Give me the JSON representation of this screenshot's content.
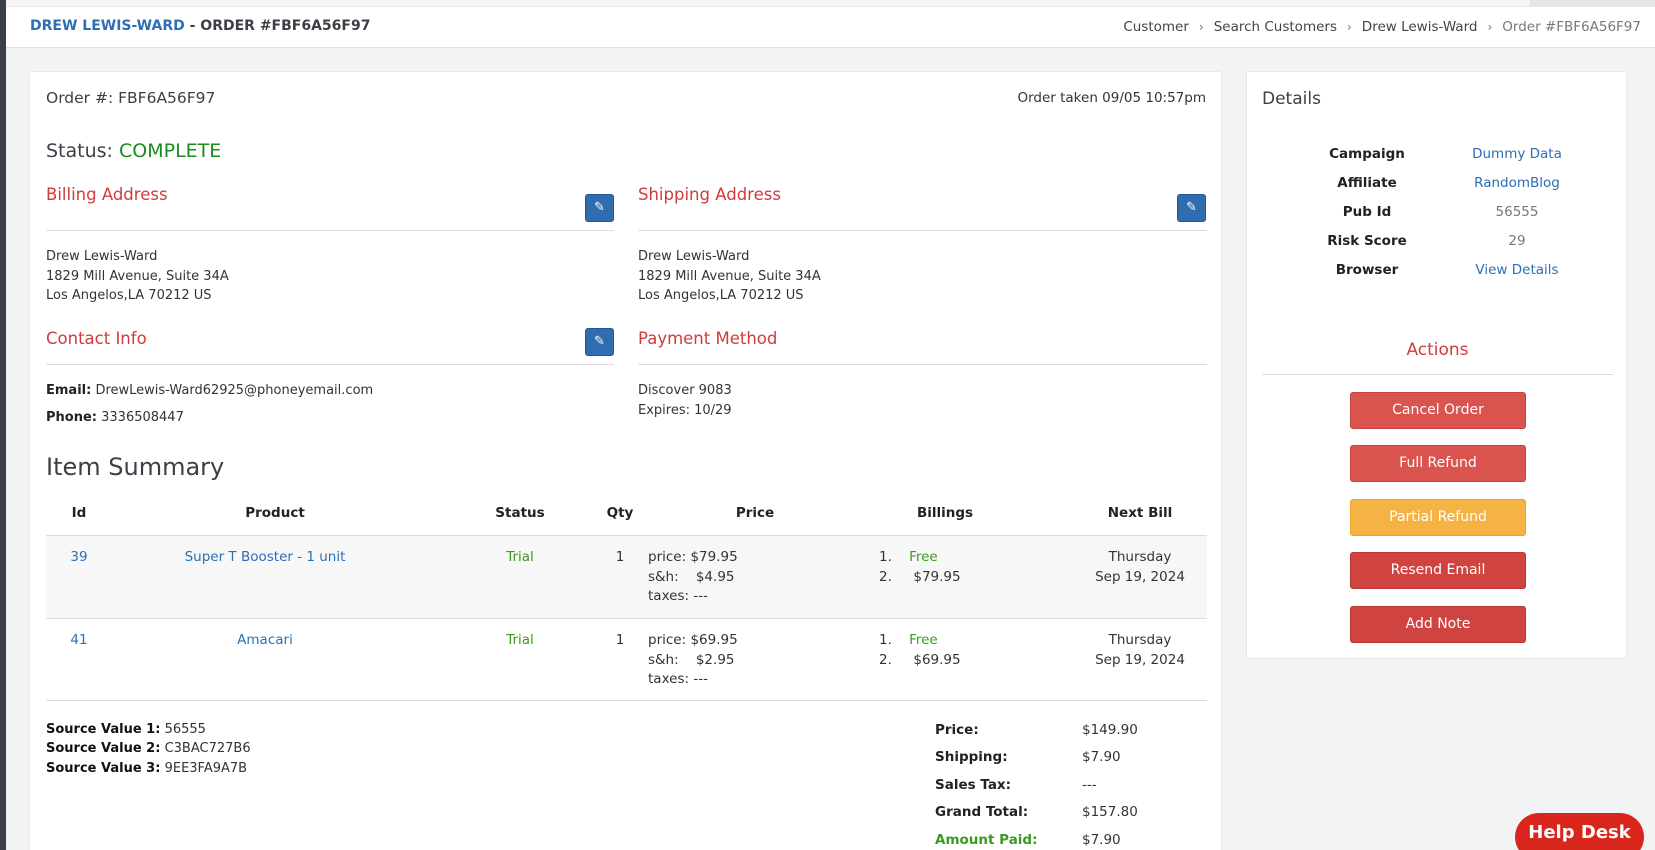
{
  "header": {
    "customer_name": "DREW LEWIS-WARD",
    "order_suffix": " - ORDER #FBF6A56F97",
    "breadcrumb": [
      "Customer",
      "Search Customers",
      "Drew Lewis-Ward",
      "Order #FBF6A56F97"
    ],
    "breadcrumb_separator": "›"
  },
  "order": {
    "number_label": "Order #: FBF6A56F97",
    "taken": "Order taken 09/05 10:57pm",
    "status_label": "Status: ",
    "status_value": "COMPLETE"
  },
  "billing": {
    "title": "Billing Address",
    "lines": [
      "Drew Lewis-Ward",
      "1829 Mill Avenue, Suite 34A",
      "Los Angelos,LA 70212 US"
    ]
  },
  "shipping": {
    "title": "Shipping Address",
    "lines": [
      "Drew Lewis-Ward",
      "1829 Mill Avenue, Suite 34A",
      "Los Angelos,LA 70212 US"
    ]
  },
  "contact": {
    "title": "Contact Info",
    "email_label": "Email:",
    "email": "DrewLewis-Ward62925@phoneyemail.com",
    "phone_label": "Phone:",
    "phone": "3336508447"
  },
  "payment": {
    "title": "Payment Method",
    "card": "Discover 9083",
    "expires": "Expires: 10/29"
  },
  "items": {
    "title": "Item Summary",
    "columns": [
      "Id",
      "Product",
      "Status",
      "Qty",
      "Price",
      "Billings",
      "Next Bill"
    ],
    "rows": [
      {
        "id": "39",
        "product": "Super T Booster - 1 unit",
        "status": "Trial",
        "qty": "1",
        "price_label": "price:",
        "price": "$79.95",
        "sh_label": "s&h:",
        "sh": "$4.95",
        "taxes_label": "taxes:",
        "taxes": "---",
        "billing_1_num": "1.",
        "billing_1": "Free",
        "billing_2_num": "2.",
        "billing_2": "$79.95",
        "next_day": "Thursday",
        "next_date": "Sep 19, 2024"
      },
      {
        "id": "41",
        "product": "Amacari",
        "status": "Trial",
        "qty": "1",
        "price_label": "price:",
        "price": "$69.95",
        "sh_label": "s&h:",
        "sh": "$2.95",
        "taxes_label": "taxes:",
        "taxes": "---",
        "billing_1_num": "1.",
        "billing_1": "Free",
        "billing_2_num": "2.",
        "billing_2": "$69.95",
        "next_day": "Thursday",
        "next_date": "Sep 19, 2024"
      }
    ]
  },
  "source": {
    "v1_label": "Source Value 1:",
    "v1": "56555",
    "v2_label": "Source Value 2:",
    "v2": "C3BAC727B6",
    "v3_label": "Source Value 3:",
    "v3": "9EE3FA9A7B"
  },
  "totals": {
    "price_label": "Price:",
    "price": "$149.90",
    "shipping_label": "Shipping:",
    "shipping": "$7.90",
    "tax_label": "Sales Tax:",
    "tax": "---",
    "grand_label": "Grand Total:",
    "grand": "$157.80",
    "paid_label": "Amount Paid:",
    "paid": "$7.90"
  },
  "details": {
    "title": "Details",
    "campaign_label": "Campaign",
    "campaign": "Dummy Data",
    "affiliate_label": "Affiliate",
    "affiliate": "RandomBlog",
    "pubid_label": "Pub Id",
    "pubid": "56555",
    "risk_label": "Risk Score",
    "risk": "29",
    "browser_label": "Browser",
    "browser": "View Details"
  },
  "actions": {
    "title": "Actions",
    "cancel": "Cancel Order",
    "full_refund": "Full Refund",
    "partial_refund": "Partial Refund",
    "resend_email": "Resend Email",
    "add_note": "Add Note"
  },
  "helpdesk": {
    "label": "Help Desk"
  },
  "colors": {
    "accent_blue": "#2b6fb6",
    "section_red": "#d13b3b",
    "status_green": "#1e8a1e",
    "button_red": "#d9534f",
    "button_orange": "#f4b343"
  }
}
